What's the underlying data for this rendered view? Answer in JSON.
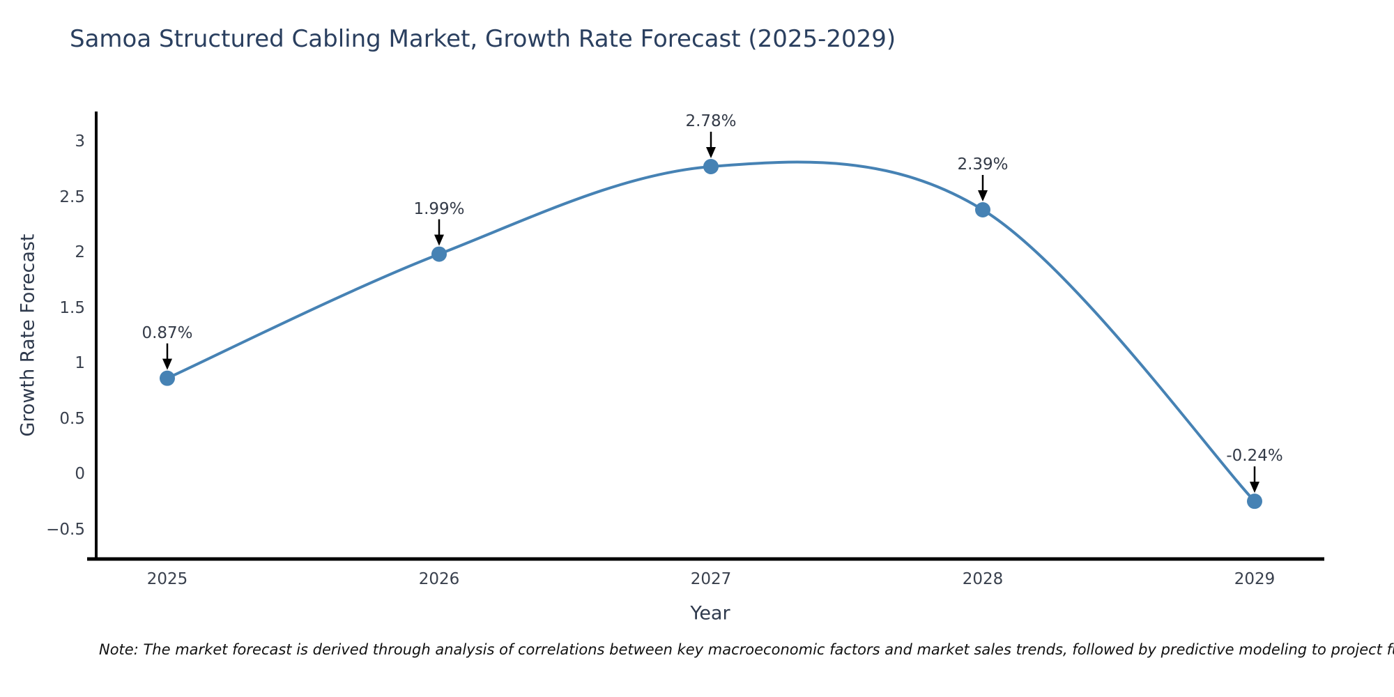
{
  "title": "Samoa Structured Cabling Market, Growth Rate Forecast (2025-2029)",
  "note": "Note: The market forecast is derived through analysis of correlations between key macroeconomic factors and market sales trends, followed by predictive modeling to project future sales",
  "chart_data": {
    "type": "line",
    "title": "Samoa Structured Cabling Market, Growth Rate Forecast (2025-2029)",
    "xlabel": "Year",
    "ylabel": "Growth Rate Forecast",
    "categories": [
      "2025",
      "2026",
      "2027",
      "2028",
      "2029"
    ],
    "values": [
      0.87,
      1.99,
      2.78,
      2.39,
      -0.24
    ],
    "point_labels": [
      "0.87%",
      "1.99%",
      "2.78%",
      "2.39%",
      "-0.24%"
    ],
    "yticks": [
      {
        "label": "3",
        "value": 3
      },
      {
        "label": "2.5",
        "value": 2.5
      },
      {
        "label": "2",
        "value": 2
      },
      {
        "label": "1.5",
        "value": 1.5
      },
      {
        "label": "1",
        "value": 1
      },
      {
        "label": "0.5",
        "value": 0.5
      },
      {
        "label": "0",
        "value": 0
      },
      {
        "label": "−0.5",
        "value": -0.5
      }
    ],
    "ylim": [
      -0.8,
      3.3
    ],
    "grid": false,
    "legend": false,
    "line_smoothing": "spline",
    "annotation_style": "black-arrow-down",
    "colors": {
      "line": "#4682b4",
      "marker": "#4682b4",
      "arrow": "#000000",
      "axis": "#000000",
      "title_text": "#2a3f5f",
      "axis_text": "#2f3a4d",
      "tick_text": "#39404d",
      "annotation_text": "#333a47",
      "note_text": "#111111",
      "background": "#ffffff"
    }
  }
}
